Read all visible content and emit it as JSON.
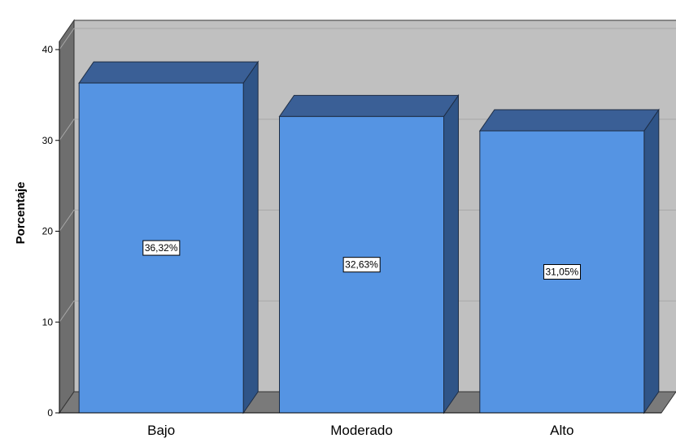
{
  "chart_data": {
    "type": "bar",
    "categories": [
      "Bajo",
      "Moderado",
      "Alto"
    ],
    "values": [
      36.32,
      32.63,
      31.05
    ],
    "data_labels": [
      "36,32%",
      "32,63%",
      "31,05%"
    ],
    "title": "",
    "xlabel": "",
    "ylabel": "Porcentaje",
    "ylim": [
      0,
      40
    ],
    "yticks": [
      0,
      10,
      20,
      30,
      40
    ],
    "ytick_labels": [
      "0",
      "10",
      "20",
      "30",
      "40"
    ],
    "grid": true,
    "legend": "none",
    "style": "3d"
  },
  "colors": {
    "bar_front": "#5594e3",
    "bar_top": "#3a5f96",
    "bar_side": "#2f5487",
    "wall_back": "#c0c0c0",
    "wall_side": "#6e6e6e",
    "floor": "#7a7a7a",
    "gridline": "#a8a8a8"
  }
}
